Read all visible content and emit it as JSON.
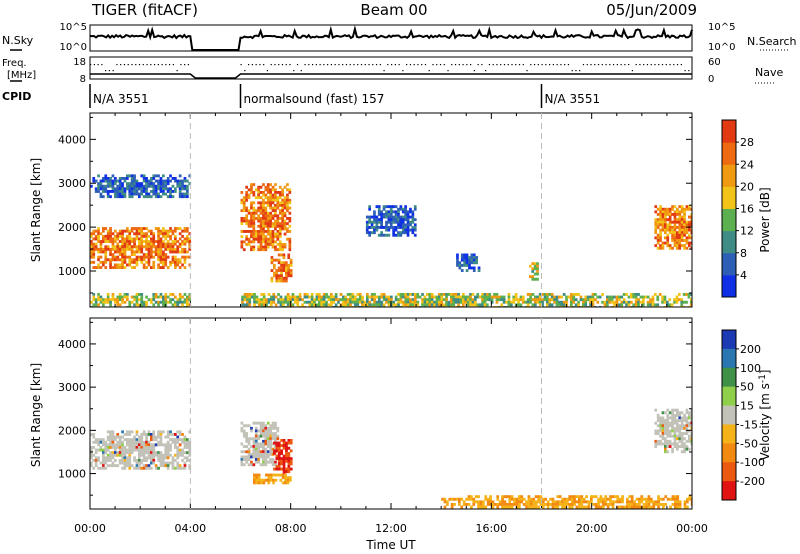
{
  "header": {
    "radar": "TIGER (fitACF)",
    "beam": "Beam 00",
    "date": "05/Jun/2009"
  },
  "noise_panel": {
    "left_label": "N.Sky",
    "left_ticks": [
      "10^5",
      "10^0"
    ],
    "right_label": "N.Search",
    "right_ticks": [
      "10^5",
      "10^0"
    ]
  },
  "freq_panel": {
    "left_label_1": "Freq.",
    "left_label_2": "[MHz]",
    "left_ticks": [
      "18",
      "8"
    ],
    "right_label": "Nave",
    "right_ticks": [
      "60",
      "0"
    ]
  },
  "cpid_panel": {
    "label": "CPID",
    "segments": [
      {
        "text": "N/A 3551",
        "start": 0,
        "end": 4
      },
      {
        "text": "normalsound (fast) 157",
        "start": 6,
        "end": 18
      },
      {
        "text": "N/A 3551",
        "start": 18,
        "end": 24
      }
    ]
  },
  "colors": {
    "power_scale": [
      "#1030e6",
      "#2d5fb7",
      "#3f8c86",
      "#5db050",
      "#f2c419",
      "#f09a12",
      "#ee6a12",
      "#e23a12"
    ],
    "velocity_scale": [
      "#1d3ab5",
      "#2a76b0",
      "#3f9148",
      "#8fcf4a",
      "#c2c2b8",
      "#f5b319",
      "#f28a12",
      "#ec5a12",
      "#e01212"
    ]
  },
  "chart_data": [
    {
      "type": "heatmap",
      "title": "Power",
      "ylabel": "Slant Range [km]",
      "xlabel": "Time UT",
      "xlim": [
        0,
        24
      ],
      "ylim": [
        180,
        4600
      ],
      "x_ticks": [
        "00:00",
        "04:00",
        "08:00",
        "12:00",
        "16:00",
        "20:00",
        "00:00"
      ],
      "y_ticks": [
        1000,
        2000,
        3000,
        4000
      ],
      "colorbar": {
        "label": "Power [dB]",
        "ticks": [
          4,
          8,
          12,
          16,
          20,
          24,
          28
        ],
        "range": [
          0,
          32
        ]
      },
      "data_gaps": [
        [
          4,
          6
        ]
      ],
      "features": [
        {
          "t_start": 0.0,
          "t_end": 4.0,
          "r_start": 1100,
          "r_end": 2000,
          "level": "high"
        },
        {
          "t_start": 0.0,
          "t_end": 4.0,
          "r_start": 2700,
          "r_end": 3200,
          "level": "low"
        },
        {
          "t_start": 6.0,
          "t_end": 8.0,
          "r_start": 1500,
          "r_end": 3000,
          "level": "high"
        },
        {
          "t_start": 7.2,
          "t_end": 8.0,
          "r_start": 800,
          "r_end": 1400,
          "level": "high"
        },
        {
          "t_start": 11.0,
          "t_end": 13.0,
          "r_start": 1800,
          "r_end": 2500,
          "level": "low"
        },
        {
          "t_start": 14.5,
          "t_end": 15.5,
          "r_start": 1000,
          "r_end": 1400,
          "level": "low"
        },
        {
          "t_start": 17.5,
          "t_end": 17.8,
          "r_start": 800,
          "r_end": 1200,
          "level": "mid"
        },
        {
          "t_start": 0.0,
          "t_end": 24.0,
          "r_start": 200,
          "r_end": 500,
          "level": "mid"
        },
        {
          "t_start": 22.5,
          "t_end": 24.0,
          "r_start": 1500,
          "r_end": 2500,
          "level": "high"
        }
      ]
    },
    {
      "type": "heatmap",
      "title": "Velocity",
      "ylabel": "Slant Range [km]",
      "xlabel": "Time UT",
      "xlim": [
        0,
        24
      ],
      "ylim": [
        180,
        4600
      ],
      "x_ticks": [
        "00:00",
        "04:00",
        "08:00",
        "12:00",
        "16:00",
        "20:00",
        "00:00"
      ],
      "y_ticks": [
        1000,
        2000,
        3000,
        4000
      ],
      "colorbar": {
        "label": "Velocity [m s-1]",
        "label_main": "Velocity [m s",
        "label_sup": "-1",
        "label_end": "]",
        "ticks": [
          200,
          100,
          50,
          15,
          -15,
          -50,
          -100,
          -200
        ]
      },
      "data_gaps": [
        [
          4,
          6
        ]
      ],
      "features": [
        {
          "t_start": 0.0,
          "t_end": 4.0,
          "r_start": 1100,
          "r_end": 2000,
          "level": "low-velocity"
        },
        {
          "t_start": 6.0,
          "t_end": 7.5,
          "r_start": 1200,
          "r_end": 2200,
          "level": "low-velocity"
        },
        {
          "t_start": 7.3,
          "t_end": 8.0,
          "r_start": 1000,
          "r_end": 1800,
          "level": "strong-away"
        },
        {
          "t_start": 6.5,
          "t_end": 8.0,
          "r_start": 800,
          "r_end": 1000,
          "level": "moderate-away"
        },
        {
          "t_start": 14.0,
          "t_end": 24.0,
          "r_start": 200,
          "r_end": 500,
          "level": "moderate-away"
        },
        {
          "t_start": 22.5,
          "t_end": 24.0,
          "r_start": 1500,
          "r_end": 2500,
          "level": "low-velocity"
        }
      ]
    }
  ]
}
